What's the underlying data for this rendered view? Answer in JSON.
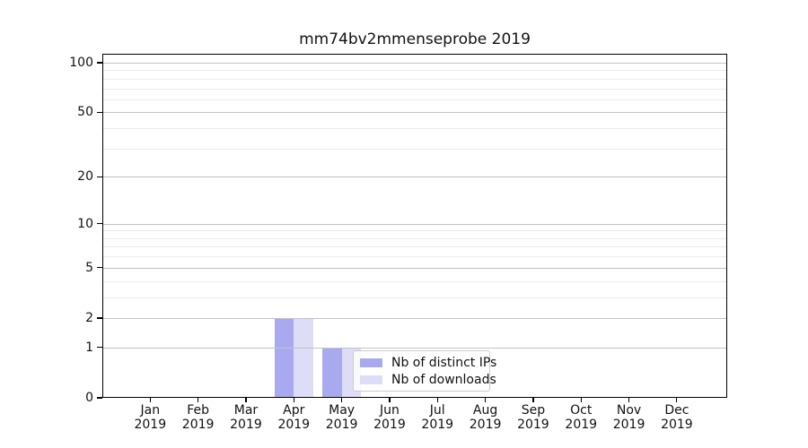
{
  "title": "mm74bv2mmenseprobe 2019",
  "chart_data": {
    "type": "bar",
    "title": "mm74bv2mmenseprobe 2019",
    "scale": "log1p",
    "categories": [
      "Jan",
      "Feb",
      "Mar",
      "Apr",
      "May",
      "Jun",
      "Jul",
      "Aug",
      "Sep",
      "Oct",
      "Nov",
      "Dec"
    ],
    "year": "2019",
    "series": [
      {
        "name": "Nb of distinct IPs",
        "color": "#a9a9f0",
        "values": [
          0,
          0,
          0,
          2,
          1,
          0,
          0,
          0,
          0,
          0,
          0,
          0
        ]
      },
      {
        "name": "Nb of downloads",
        "color": "#ddddf8",
        "values": [
          0,
          0,
          0,
          2,
          1,
          0,
          0,
          0,
          0,
          0,
          0,
          0
        ]
      }
    ],
    "yticks": [
      0,
      1,
      2,
      5,
      10,
      20,
      50,
      100
    ],
    "minor_gridticks": [
      3,
      4,
      6,
      7,
      8,
      9,
      30,
      40,
      60,
      70,
      80,
      90
    ],
    "ylim": [
      0,
      113
    ],
    "grid": "horizontal",
    "legend_position": "lower-center-inside",
    "xlabel": "",
    "ylabel": ""
  },
  "colors": {
    "bar_distinct_ips": "#a9a9f0",
    "bar_downloads": "#ddddf8",
    "grid_major": "#c3c3c3",
    "grid_minor": "#ebebeb",
    "spine": "#000000",
    "legend_border": "#cccccc",
    "background": "#ffffff"
  }
}
